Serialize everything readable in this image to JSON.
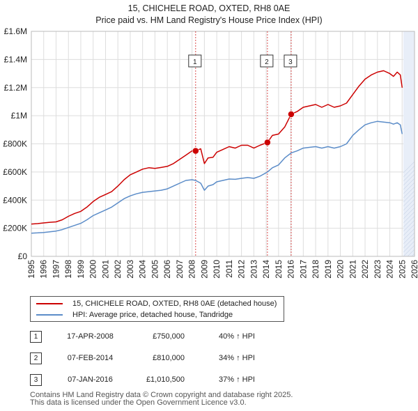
{
  "title": "15, CHICHELE ROAD, OXTED, RH8 0AE",
  "subtitle": "Price paid vs. HM Land Registry's House Price Index (HPI)",
  "colors": {
    "property": "#cc0000",
    "hpi": "#5b8cc8",
    "marker_line": "#cc0000",
    "shade": "#e8eef8",
    "grid": "#dddddd"
  },
  "legend": {
    "property_label": "15, CHICHELE ROAD, OXTED, RH8 0AE (detached house)",
    "hpi_label": "HPI: Average price, detached house, Tandridge"
  },
  "transactions": [
    {
      "num": "1",
      "date": "17-APR-2008",
      "price": "£750,000",
      "hpi": "40% ↑ HPI"
    },
    {
      "num": "2",
      "date": "07-FEB-2014",
      "price": "£810,000",
      "hpi": "34% ↑ HPI"
    },
    {
      "num": "3",
      "date": "07-JAN-2016",
      "price": "£1,010,500",
      "hpi": "37% ↑ HPI"
    }
  ],
  "footer": {
    "line1": "Contains HM Land Registry data © Crown copyright and database right 2025.",
    "line2": "This data is licensed under the Open Government Licence v3.0."
  },
  "chart_data": {
    "type": "line",
    "xlim": [
      1995,
      2026
    ],
    "ylim": [
      0,
      1600000
    ],
    "x_ticks": [
      "1995",
      "1996",
      "1997",
      "1998",
      "1999",
      "2000",
      "2001",
      "2002",
      "2003",
      "2004",
      "2005",
      "2006",
      "2007",
      "2008",
      "2009",
      "2010",
      "2011",
      "2012",
      "2013",
      "2014",
      "2015",
      "2016",
      "2017",
      "2018",
      "2019",
      "2020",
      "2021",
      "2022",
      "2023",
      "2024",
      "2025",
      "2026"
    ],
    "y_ticks": [
      {
        "value": 0,
        "label": "£0"
      },
      {
        "value": 200000,
        "label": "£200K"
      },
      {
        "value": 400000,
        "label": "£400K"
      },
      {
        "value": 600000,
        "label": "£600K"
      },
      {
        "value": 800000,
        "label": "£800K"
      },
      {
        "value": 1000000,
        "label": "£1M"
      },
      {
        "value": 1200000,
        "label": "£1.2M"
      },
      {
        "value": 1400000,
        "label": "£1.4M"
      },
      {
        "value": 1600000,
        "label": "£1.6M"
      }
    ],
    "shaded_range": [
      2025.1,
      2026
    ],
    "sales": [
      {
        "label": "1",
        "x": 2008.29,
        "y": 750000
      },
      {
        "label": "2",
        "x": 2014.1,
        "y": 810000
      },
      {
        "label": "3",
        "x": 2016.02,
        "y": 1010500
      }
    ],
    "series": [
      {
        "name": "15, CHICHELE ROAD, OXTED, RH8 0AE (detached house)",
        "x": [
          1995.0,
          1995.5,
          1996.0,
          1996.5,
          1997.0,
          1997.5,
          1998.0,
          1998.5,
          1999.0,
          1999.5,
          2000.0,
          2000.5,
          2001.0,
          2001.5,
          2002.0,
          2002.5,
          2003.0,
          2003.5,
          2004.0,
          2004.5,
          2005.0,
          2005.5,
          2006.0,
          2006.5,
          2007.0,
          2007.5,
          2008.0,
          2008.29,
          2008.7,
          2009.0,
          2009.3,
          2009.7,
          2010.0,
          2010.5,
          2011.0,
          2011.5,
          2012.0,
          2012.5,
          2013.0,
          2013.5,
          2014.1,
          2014.5,
          2015.0,
          2015.5,
          2016.02,
          2016.5,
          2017.0,
          2017.5,
          2018.0,
          2018.5,
          2019.0,
          2019.5,
          2020.0,
          2020.5,
          2021.0,
          2021.5,
          2022.0,
          2022.5,
          2023.0,
          2023.5,
          2024.0,
          2024.3,
          2024.6,
          2024.85,
          2025.0
        ],
        "y": [
          230000,
          233000,
          238000,
          242000,
          245000,
          260000,
          285000,
          305000,
          320000,
          350000,
          390000,
          420000,
          440000,
          460000,
          500000,
          545000,
          580000,
          600000,
          620000,
          630000,
          625000,
          632000,
          640000,
          660000,
          690000,
          720000,
          750000,
          750000,
          765000,
          660000,
          700000,
          705000,
          740000,
          760000,
          780000,
          770000,
          790000,
          790000,
          770000,
          790000,
          810000,
          860000,
          870000,
          920000,
          1010500,
          1030000,
          1060000,
          1070000,
          1080000,
          1060000,
          1080000,
          1060000,
          1070000,
          1090000,
          1150000,
          1210000,
          1260000,
          1290000,
          1310000,
          1320000,
          1300000,
          1280000,
          1310000,
          1290000,
          1200000
        ]
      },
      {
        "name": "HPI: Average price, detached house, Tandridge",
        "x": [
          1995.0,
          1995.5,
          1996.0,
          1996.5,
          1997.0,
          1997.5,
          1998.0,
          1998.5,
          1999.0,
          1999.5,
          2000.0,
          2000.5,
          2001.0,
          2001.5,
          2002.0,
          2002.5,
          2003.0,
          2003.5,
          2004.0,
          2004.5,
          2005.0,
          2005.5,
          2006.0,
          2006.5,
          2007.0,
          2007.5,
          2008.0,
          2008.29,
          2008.7,
          2009.0,
          2009.3,
          2009.7,
          2010.0,
          2010.5,
          2011.0,
          2011.5,
          2012.0,
          2012.5,
          2013.0,
          2013.5,
          2014.1,
          2014.5,
          2015.0,
          2015.5,
          2016.02,
          2016.5,
          2017.0,
          2017.5,
          2018.0,
          2018.5,
          2019.0,
          2019.5,
          2020.0,
          2020.5,
          2021.0,
          2021.5,
          2022.0,
          2022.5,
          2023.0,
          2023.5,
          2024.0,
          2024.3,
          2024.6,
          2024.85,
          2025.0
        ],
        "y": [
          165000,
          167000,
          170000,
          175000,
          180000,
          190000,
          205000,
          220000,
          235000,
          260000,
          290000,
          310000,
          330000,
          350000,
          380000,
          410000,
          430000,
          445000,
          455000,
          460000,
          465000,
          470000,
          480000,
          500000,
          520000,
          540000,
          545000,
          540000,
          520000,
          470000,
          500000,
          510000,
          530000,
          540000,
          550000,
          548000,
          555000,
          560000,
          555000,
          570000,
          600000,
          630000,
          650000,
          700000,
          735000,
          750000,
          770000,
          775000,
          780000,
          770000,
          780000,
          770000,
          780000,
          800000,
          860000,
          900000,
          935000,
          950000,
          960000,
          955000,
          950000,
          940000,
          950000,
          935000,
          870000
        ]
      }
    ]
  }
}
